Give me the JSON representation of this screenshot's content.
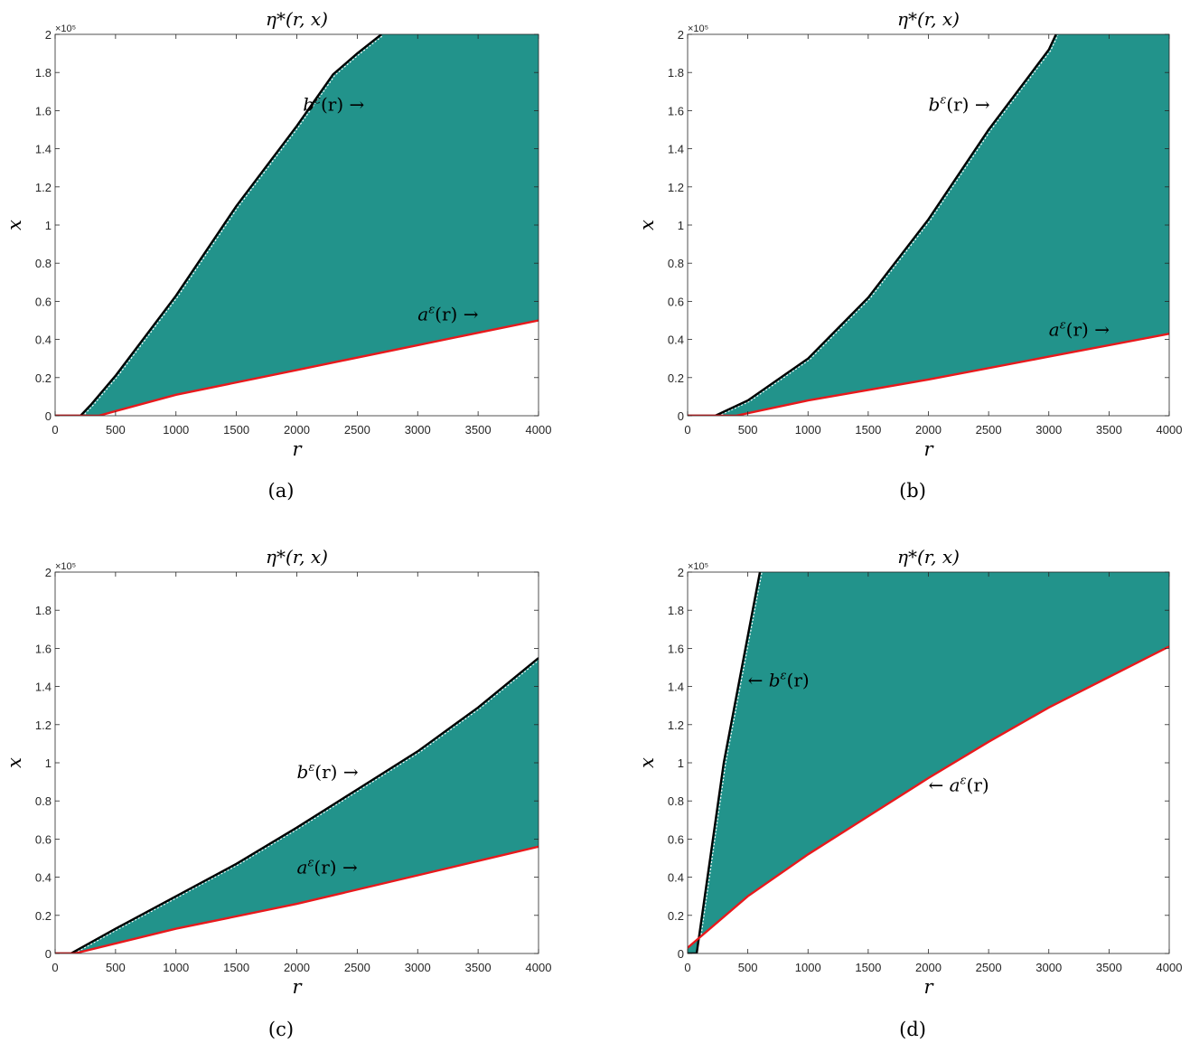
{
  "chart_data": [
    {
      "type": "area",
      "panel": "a",
      "caption": "(a)",
      "title": "η*(r, x)",
      "xlabel": "r",
      "ylabel": "x",
      "xlim": [
        0,
        4000
      ],
      "ylim": [
        0,
        200000
      ],
      "y_multiplier": "×10⁵",
      "xticks": [
        "0",
        "500",
        "1000",
        "1500",
        "2000",
        "2500",
        "3000",
        "3500",
        "4000"
      ],
      "yticks": [
        "0",
        "0.2",
        "0.4",
        "0.6",
        "0.8",
        "1",
        "1.2",
        "1.4",
        "1.6",
        "1.8",
        "2"
      ],
      "fill_color": "#22938b",
      "series": [
        {
          "name": "b^ε(r)",
          "color": "#000000",
          "x": [
            0,
            210,
            300,
            500,
            1000,
            1500,
            2000,
            2300,
            2500,
            2700
          ],
          "y": [
            0,
            0,
            6000,
            21000,
            63000,
            110000,
            152000,
            179000,
            190000,
            200000
          ]
        },
        {
          "name": "a^ε(r)",
          "color": "#e8191c",
          "x": [
            0,
            360,
            1000,
            2000,
            3000,
            4000
          ],
          "y": [
            0,
            0,
            11000,
            24000,
            37000,
            50000
          ]
        }
      ],
      "annotations": [
        {
          "text": "b^ε(r) →",
          "x": 2050,
          "y": 160000
        },
        {
          "text": "a^ε(r) →",
          "x": 3000,
          "y": 50000
        }
      ]
    },
    {
      "type": "area",
      "panel": "b",
      "caption": "(b)",
      "title": "η*(r, x)",
      "xlabel": "r",
      "ylabel": "x",
      "xlim": [
        0,
        4000
      ],
      "ylim": [
        0,
        200000
      ],
      "y_multiplier": "×10⁵",
      "xticks": [
        "0",
        "500",
        "1000",
        "1500",
        "2000",
        "2500",
        "3000",
        "3500",
        "4000"
      ],
      "yticks": [
        "0",
        "0.2",
        "0.4",
        "0.6",
        "0.8",
        "1",
        "1.2",
        "1.4",
        "1.6",
        "1.8",
        "2"
      ],
      "fill_color": "#22938b",
      "series": [
        {
          "name": "b^ε(r)",
          "color": "#000000",
          "x": [
            0,
            230,
            500,
            1000,
            1500,
            2000,
            2500,
            3000,
            3060
          ],
          "y": [
            0,
            0,
            8000,
            30000,
            62000,
            103000,
            150000,
            192000,
            200000
          ]
        },
        {
          "name": "a^ε(r)",
          "color": "#e8191c",
          "x": [
            0,
            400,
            1000,
            2000,
            3000,
            4000
          ],
          "y": [
            0,
            0,
            8000,
            19000,
            31000,
            43000
          ]
        }
      ],
      "annotations": [
        {
          "text": "b^ε(r) →",
          "x": 2000,
          "y": 160000
        },
        {
          "text": "a^ε(r) →",
          "x": 3000,
          "y": 42000
        }
      ]
    },
    {
      "type": "area",
      "panel": "c",
      "caption": "(c)",
      "title": "η*(r, x)",
      "xlabel": "r",
      "ylabel": "x",
      "xlim": [
        0,
        4000
      ],
      "ylim": [
        0,
        200000
      ],
      "y_multiplier": "×10⁵",
      "xticks": [
        "0",
        "500",
        "1000",
        "1500",
        "2000",
        "2500",
        "3000",
        "3500",
        "4000"
      ],
      "yticks": [
        "0",
        "0.2",
        "0.4",
        "0.6",
        "0.8",
        "1",
        "1.2",
        "1.4",
        "1.6",
        "1.8",
        "2"
      ],
      "fill_color": "#22938b",
      "series": [
        {
          "name": "b^ε(r)",
          "color": "#000000",
          "x": [
            0,
            130,
            500,
            1000,
            1500,
            2000,
            2500,
            3000,
            3500,
            4000
          ],
          "y": [
            0,
            0,
            13000,
            30000,
            47000,
            66000,
            86000,
            106000,
            129000,
            155000
          ]
        },
        {
          "name": "a^ε(r)",
          "color": "#e8191c",
          "x": [
            0,
            160,
            1000,
            2000,
            3000,
            4000
          ],
          "y": [
            0,
            0,
            13000,
            26000,
            41000,
            56000
          ]
        }
      ],
      "annotations": [
        {
          "text": "b^ε(r) →",
          "x": 2000,
          "y": 92000
        },
        {
          "text": "a^ε(r) →",
          "x": 2000,
          "y": 42000
        }
      ]
    },
    {
      "type": "area",
      "panel": "d",
      "caption": "(d)",
      "title": "η*(r, x)",
      "xlabel": "r",
      "ylabel": "x",
      "xlim": [
        0,
        4000
      ],
      "ylim": [
        0,
        200000
      ],
      "y_multiplier": "×10⁵",
      "xticks": [
        "0",
        "500",
        "1000",
        "1500",
        "2000",
        "2500",
        "3000",
        "3500",
        "4000"
      ],
      "yticks": [
        "0",
        "0.2",
        "0.4",
        "0.6",
        "0.8",
        "1",
        "1.2",
        "1.4",
        "1.6",
        "1.8",
        "2"
      ],
      "fill_color": "#22938b",
      "series": [
        {
          "name": "b^ε(r)",
          "color": "#000000",
          "x": [
            0,
            75,
            300,
            600
          ],
          "y": [
            0,
            0,
            100000,
            200000
          ]
        },
        {
          "name": "a^ε(r)",
          "color": "#e8191c",
          "x": [
            0,
            500,
            1000,
            1500,
            2000,
            2500,
            3000,
            3500,
            4000
          ],
          "y": [
            3000,
            30000,
            52000,
            72000,
            92000,
            111000,
            129000,
            145000,
            161000
          ]
        }
      ],
      "annotations": [
        {
          "text": "← b^ε(r)",
          "x": 500,
          "y": 140000
        },
        {
          "text": "← a^ε(r)",
          "x": 2000,
          "y": 85000
        }
      ]
    }
  ]
}
